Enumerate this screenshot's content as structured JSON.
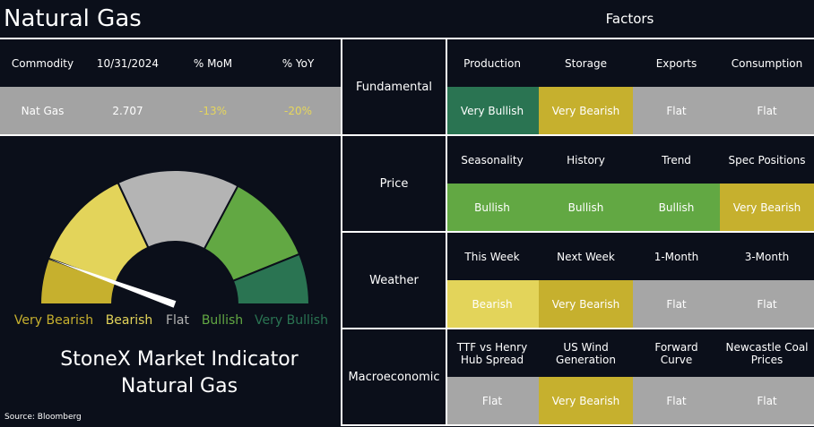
{
  "header": {
    "title": "Natural Gas",
    "factors_title": "Factors"
  },
  "commodity_table": {
    "columns": [
      "Commodity",
      "10/31/2024",
      "% MoM",
      "% YoY"
    ],
    "row": [
      "Nat Gas",
      "2.707",
      "-13%",
      "-20%"
    ]
  },
  "gauge": {
    "labels": [
      {
        "text": "Very Bearish",
        "color": "#c6b02e"
      },
      {
        "text": "Bearish",
        "color": "#e3d45a"
      },
      {
        "text": "Flat",
        "color": "#b4b4b4"
      },
      {
        "text": "Bullish",
        "color": "#62a843"
      },
      {
        "text": "Very Bullish",
        "color": "#2a7452"
      }
    ],
    "title": [
      "StoneX Market Indicator",
      "Natural Gas"
    ],
    "source": "Source: Bloomberg"
  },
  "factors": [
    {
      "group": "Fundamental",
      "items": [
        {
          "name": "Production",
          "signal": "Very Bullish",
          "color": "#2a7452"
        },
        {
          "name": "Storage",
          "signal": "Very Bearish",
          "color": "#c6b02e"
        },
        {
          "name": "Exports",
          "signal": "Flat",
          "color": "#a6a6a6"
        },
        {
          "name": "Consumption",
          "signal": "Flat",
          "color": "#a6a6a6"
        }
      ]
    },
    {
      "group": "Price",
      "items": [
        {
          "name": "Seasonality",
          "signal": "Bullish",
          "color": "#62a843"
        },
        {
          "name": "History",
          "signal": "Bullish",
          "color": "#62a843"
        },
        {
          "name": "Trend",
          "signal": "Bullish",
          "color": "#62a843"
        },
        {
          "name": "Spec Positions",
          "signal": "Very Bearish",
          "color": "#c6b02e"
        }
      ]
    },
    {
      "group": "Weather",
      "items": [
        {
          "name": "This Week",
          "signal": "Bearish",
          "color": "#e3d45a"
        },
        {
          "name": "Next Week",
          "signal": "Very Bearish",
          "color": "#c6b02e"
        },
        {
          "name": "1-Month",
          "signal": "Flat",
          "color": "#a6a6a6"
        },
        {
          "name": "3-Month",
          "signal": "Flat",
          "color": "#a6a6a6"
        }
      ]
    },
    {
      "group": "Macroeconomic",
      "items": [
        {
          "name": "TTF vs Henry Hub Spread",
          "signal": "Flat",
          "color": "#a6a6a6"
        },
        {
          "name": "US Wind Generation",
          "signal": "Very Bearish",
          "color": "#c6b02e"
        },
        {
          "name": "Forward Curve",
          "signal": "Flat",
          "color": "#a6a6a6"
        },
        {
          "name": "Newcastle Coal Prices",
          "signal": "Flat",
          "color": "#a6a6a6"
        }
      ]
    }
  ]
}
